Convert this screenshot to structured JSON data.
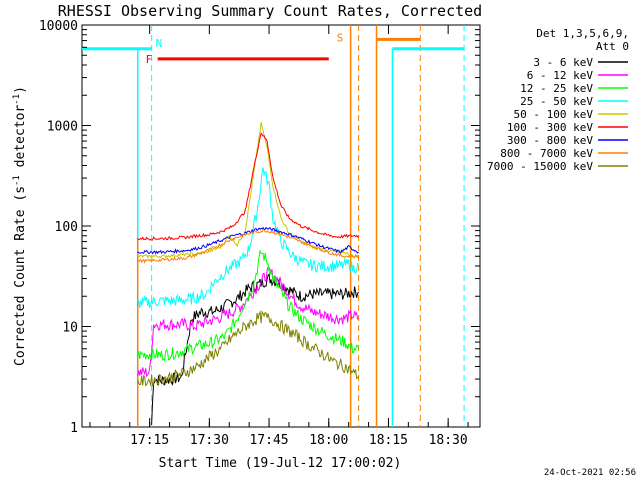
{
  "chart_data": {
    "type": "line",
    "title": "RHESSI Observing Summary Count Rates, Corrected",
    "xlabel": "Start Time (19-Jul-12 17:00:02)",
    "ylabel": "Corrected Count Rate (s",
    "ylabel_sup": "-1",
    "ylabel_tail": " detector",
    "ylabel_close": ")",
    "y_scale": "log",
    "ylim": [
      1,
      10000
    ],
    "xlim_minutes": [
      0,
      100
    ],
    "x_ticks": [
      {
        "value": 17,
        "label": "17:15"
      },
      {
        "value": 32,
        "label": "17:30"
      },
      {
        "value": 47,
        "label": "17:45"
      },
      {
        "value": 62,
        "label": "18:00"
      },
      {
        "value": 77,
        "label": "18:15"
      },
      {
        "value": 92,
        "label": "18:30"
      }
    ],
    "y_ticks": [
      {
        "value": 1,
        "label": "1"
      },
      {
        "value": 10,
        "label": "10"
      },
      {
        "value": 100,
        "label": "100"
      },
      {
        "value": 1000,
        "label": "1000"
      },
      {
        "value": 10000,
        "label": "10000"
      }
    ],
    "legend_header": [
      "Det 1,3,5,6,9,",
      "Att 0"
    ],
    "legend_position": "right",
    "series": [
      {
        "name": "3 - 6 keV",
        "color": "#000000",
        "points": [
          [
            17.5,
            1.05
          ],
          [
            18,
            3.0
          ],
          [
            20,
            2.9
          ],
          [
            25,
            3.1
          ],
          [
            27.5,
            12
          ],
          [
            30,
            14
          ],
          [
            33,
            14
          ],
          [
            36,
            16
          ],
          [
            39,
            19
          ],
          [
            42,
            24
          ],
          [
            45,
            27
          ],
          [
            47,
            30
          ],
          [
            49,
            28
          ],
          [
            51,
            25
          ],
          [
            53,
            22
          ],
          [
            55,
            20
          ],
          [
            58,
            21
          ],
          [
            60,
            21
          ],
          [
            62,
            21
          ],
          [
            64,
            21
          ],
          [
            66,
            21
          ],
          [
            68,
            22
          ],
          [
            69.5,
            22
          ]
        ]
      },
      {
        "name": "6 - 12 keV",
        "color": "#ff00ff",
        "points": [
          [
            14,
            3.5
          ],
          [
            17,
            3.5
          ],
          [
            18,
            10.5
          ],
          [
            22,
            10.5
          ],
          [
            26,
            10.5
          ],
          [
            28,
            10
          ],
          [
            31,
            11
          ],
          [
            34,
            12
          ],
          [
            37,
            13.5
          ],
          [
            40,
            16
          ],
          [
            43,
            22
          ],
          [
            45,
            28
          ],
          [
            47,
            35
          ],
          [
            49,
            30
          ],
          [
            51,
            24
          ],
          [
            53,
            19
          ],
          [
            55,
            16
          ],
          [
            58,
            14
          ],
          [
            61,
            13
          ],
          [
            64,
            12
          ],
          [
            66,
            12
          ],
          [
            68,
            13
          ],
          [
            69.5,
            12
          ]
        ]
      },
      {
        "name": "12 - 25 keV",
        "color": "#00ff00",
        "points": [
          [
            14,
            5.2
          ],
          [
            17,
            5.3
          ],
          [
            20,
            5.2
          ],
          [
            24,
            5.5
          ],
          [
            27,
            6
          ],
          [
            30,
            6.5
          ],
          [
            33,
            7
          ],
          [
            36,
            8
          ],
          [
            39,
            12
          ],
          [
            41,
            18
          ],
          [
            43,
            25
          ],
          [
            45,
            55
          ],
          [
            46.5,
            45
          ],
          [
            48,
            30
          ],
          [
            50,
            22
          ],
          [
            52,
            16
          ],
          [
            55,
            12
          ],
          [
            58,
            10
          ],
          [
            61,
            8.5
          ],
          [
            64,
            7.5
          ],
          [
            66,
            7
          ],
          [
            68,
            6
          ],
          [
            69.5,
            6
          ]
        ]
      },
      {
        "name": "25 - 50 keV",
        "color": "#00ffff",
        "points": [
          [
            14,
            17
          ],
          [
            17,
            17.5
          ],
          [
            20,
            18
          ],
          [
            23,
            18
          ],
          [
            26,
            18.5
          ],
          [
            28,
            19
          ],
          [
            31,
            21
          ],
          [
            33,
            27
          ],
          [
            36,
            35
          ],
          [
            38,
            40
          ],
          [
            40,
            45
          ],
          [
            42,
            60
          ],
          [
            44,
            140
          ],
          [
            45.5,
            380
          ],
          [
            47,
            250
          ],
          [
            48,
            120
          ],
          [
            50,
            70
          ],
          [
            53,
            50
          ],
          [
            56,
            42
          ],
          [
            59,
            40
          ],
          [
            62,
            40
          ],
          [
            65,
            40
          ],
          [
            67,
            42
          ],
          [
            68,
            38
          ],
          [
            69.5,
            40
          ]
        ]
      },
      {
        "name": "50 - 100 keV",
        "color": "#c8c800",
        "points": [
          [
            14,
            50
          ],
          [
            17,
            50
          ],
          [
            20,
            50
          ],
          [
            23,
            51
          ],
          [
            26,
            52
          ],
          [
            29,
            53
          ],
          [
            32,
            56
          ],
          [
            35,
            62
          ],
          [
            37,
            80
          ],
          [
            39,
            65
          ],
          [
            41,
            90
          ],
          [
            43,
            300
          ],
          [
            45,
            1050
          ],
          [
            46.5,
            600
          ],
          [
            48,
            250
          ],
          [
            50,
            120
          ],
          [
            52,
            85
          ],
          [
            55,
            70
          ],
          [
            58,
            62
          ],
          [
            61,
            58
          ],
          [
            64,
            55
          ],
          [
            66,
            55
          ],
          [
            68,
            50
          ],
          [
            69.5,
            50
          ]
        ]
      },
      {
        "name": "100 - 300 keV",
        "color": "#ff0000",
        "points": [
          [
            14,
            75
          ],
          [
            17,
            75
          ],
          [
            20,
            75
          ],
          [
            23,
            76
          ],
          [
            26,
            77
          ],
          [
            29,
            80
          ],
          [
            32,
            82
          ],
          [
            35,
            88
          ],
          [
            38,
            100
          ],
          [
            41,
            140
          ],
          [
            43,
            350
          ],
          [
            45,
            850
          ],
          [
            46.5,
            700
          ],
          [
            48,
            300
          ],
          [
            50,
            160
          ],
          [
            52,
            120
          ],
          [
            55,
            100
          ],
          [
            58,
            90
          ],
          [
            61,
            82
          ],
          [
            64,
            78
          ],
          [
            66,
            79
          ],
          [
            68,
            80
          ],
          [
            69.5,
            80
          ]
        ]
      },
      {
        "name": "300 - 800 keV",
        "color": "#0000ff",
        "points": [
          [
            14,
            55
          ],
          [
            17,
            55
          ],
          [
            20,
            55
          ],
          [
            23,
            56
          ],
          [
            26,
            57
          ],
          [
            29,
            60
          ],
          [
            32,
            65
          ],
          [
            35,
            72
          ],
          [
            38,
            80
          ],
          [
            41,
            85
          ],
          [
            44,
            93
          ],
          [
            46,
            95
          ],
          [
            48,
            92
          ],
          [
            51,
            85
          ],
          [
            54,
            78
          ],
          [
            57,
            70
          ],
          [
            60,
            63
          ],
          [
            63,
            58
          ],
          [
            65,
            55
          ],
          [
            67,
            62
          ],
          [
            69.5,
            55
          ]
        ]
      },
      {
        "name": "800 - 7000 keV",
        "color": "#ff8000",
        "points": [
          [
            14,
            45
          ],
          [
            17,
            45
          ],
          [
            20,
            46
          ],
          [
            23,
            47
          ],
          [
            26,
            48
          ],
          [
            29,
            52
          ],
          [
            32,
            58
          ],
          [
            35,
            66
          ],
          [
            38,
            75
          ],
          [
            41,
            82
          ],
          [
            44,
            88
          ],
          [
            46,
            90
          ],
          [
            48,
            87
          ],
          [
            51,
            80
          ],
          [
            54,
            72
          ],
          [
            57,
            65
          ],
          [
            60,
            58
          ],
          [
            63,
            53
          ],
          [
            66,
            50
          ],
          [
            69.5,
            50
          ]
        ]
      },
      {
        "name": "7000 - 15000 keV",
        "color": "#808000",
        "points": [
          [
            14,
            2.8
          ],
          [
            17,
            2.9
          ],
          [
            20,
            3.0
          ],
          [
            23,
            3.2
          ],
          [
            26,
            3.5
          ],
          [
            29,
            4
          ],
          [
            32,
            5
          ],
          [
            35,
            6
          ],
          [
            38,
            8
          ],
          [
            41,
            10
          ],
          [
            44,
            12
          ],
          [
            46,
            12.5
          ],
          [
            48,
            11.5
          ],
          [
            51,
            9.5
          ],
          [
            54,
            8
          ],
          [
            57,
            6.5
          ],
          [
            60,
            5.5
          ],
          [
            63,
            4.5
          ],
          [
            66,
            4
          ],
          [
            68,
            3.5
          ],
          [
            69.5,
            3.2
          ]
        ]
      }
    ],
    "flags": {
      "night_label": "N",
      "flare_label": "F",
      "saa_label": "S",
      "night_color": "#00ffff",
      "flare_color": "#ff0000",
      "saa_color": "#ff8000",
      "night_segments": [
        [
          0,
          17.5
        ],
        [
          78,
          96
        ]
      ],
      "night_level": 5800,
      "flare_segment": [
        19,
        62
      ],
      "flare_level": 4600,
      "saa_segment": [
        74,
        85
      ],
      "saa_level": 7200,
      "cyan_solid_lines": [
        14,
        78
      ],
      "cyan_dashed_lines": [
        17.5,
        96
      ],
      "orange_solid_lines": [
        67.5,
        74
      ],
      "orange_dashed_lines": [
        69.5,
        85
      ]
    },
    "flare_start_line": {
      "x": 14,
      "color": "#ff8000",
      "to_value": 75
    },
    "timestamp": "24-Oct-2021 02:56"
  }
}
